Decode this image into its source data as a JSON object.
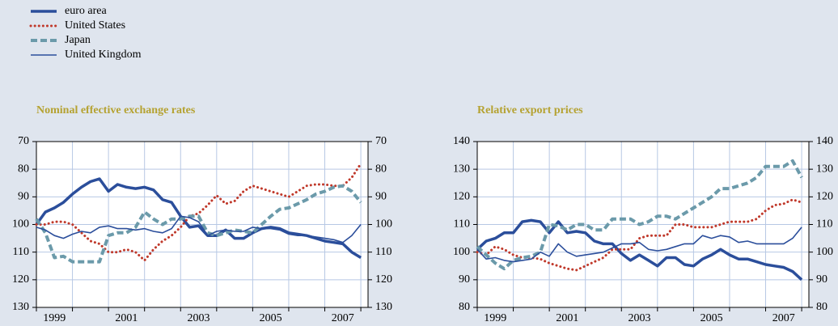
{
  "chart_data": [
    {
      "type": "line",
      "title": "Nominal effective exchange rates",
      "x": [
        1999,
        1999.25,
        1999.5,
        1999.75,
        2000,
        2000.25,
        2000.5,
        2000.75,
        2001,
        2001.25,
        2001.5,
        2001.75,
        2002,
        2002.25,
        2002.5,
        2002.75,
        2003,
        2003.25,
        2003.5,
        2003.75,
        2004,
        2004.25,
        2004.5,
        2004.75,
        2005,
        2005.25,
        2005.5,
        2005.75,
        2006,
        2006.25,
        2006.5,
        2006.75,
        2007,
        2007.25,
        2007.5,
        2007.75,
        2008
      ],
      "xlim": [
        1999,
        2008.2
      ],
      "xticks": [
        {
          "value": 1999.5,
          "label": "1999"
        },
        {
          "value": 2001.5,
          "label": "2001"
        },
        {
          "value": 2003.5,
          "label": "2003"
        },
        {
          "value": 2005.5,
          "label": "2005"
        },
        {
          "value": 2007.5,
          "label": "2007"
        }
      ],
      "xminor": [
        1999,
        2000,
        2001,
        2002,
        2003,
        2004,
        2005,
        2006,
        2007,
        2008
      ],
      "ylim": [
        70,
        130
      ],
      "y_inverted": true,
      "yticks": [
        70,
        80,
        90,
        100,
        110,
        120,
        130
      ],
      "y2lim": [
        70,
        130
      ],
      "y2ticks": [
        70,
        80,
        90,
        100,
        110,
        120,
        130
      ],
      "grid": true,
      "series": [
        {
          "name": "euro area",
          "color": "#2b4e9b",
          "style": "thick",
          "values": [
            100,
            95.5,
            94,
            92,
            89,
            86.5,
            84.5,
            83.5,
            88,
            85.5,
            86.5,
            87,
            86.5,
            87.5,
            91,
            92,
            97,
            101,
            100.5,
            104,
            104,
            102,
            105,
            105,
            103,
            101.5,
            101,
            101.5,
            103,
            103.5,
            104,
            105,
            106,
            106.5,
            107,
            110,
            112
          ]
        },
        {
          "name": "United States",
          "color": "#c0392b",
          "style": "dotted",
          "values": [
            100,
            100,
            99,
            99,
            100,
            103,
            106,
            107,
            110,
            110,
            109,
            110,
            113,
            109,
            106,
            104,
            101,
            97,
            96,
            93,
            89.5,
            92.5,
            91.5,
            88,
            86,
            87,
            88,
            89,
            90,
            88,
            86,
            85.5,
            85.5,
            86,
            86,
            83,
            78
          ]
        },
        {
          "name": "Japan",
          "color": "#6b9aaa",
          "style": "dashed",
          "values": [
            98,
            103,
            112,
            111.5,
            113.5,
            113.5,
            113.5,
            113.5,
            104,
            103,
            103,
            101,
            95.5,
            98,
            100,
            98,
            98,
            97,
            97,
            103,
            104,
            103,
            102,
            102.5,
            103,
            100,
            97,
            94.5,
            94,
            92.5,
            91,
            89,
            88,
            86.5,
            86,
            88,
            92
          ]
        },
        {
          "name": "United Kingdom",
          "color": "#2b4e9b",
          "style": "thin",
          "values": [
            101,
            102,
            104,
            105,
            103.5,
            102.5,
            103,
            101,
            100.5,
            101.5,
            101.5,
            102,
            101.5,
            102.5,
            103,
            101.5,
            97,
            97.5,
            99,
            104,
            102.5,
            102,
            102.5,
            102.5,
            101,
            101.5,
            101.5,
            102,
            103.5,
            104,
            104,
            104.5,
            105,
            105.5,
            106.5,
            104,
            100
          ]
        }
      ]
    },
    {
      "type": "line",
      "title": "Relative export prices",
      "x": [
        1999,
        1999.25,
        1999.5,
        1999.75,
        2000,
        2000.25,
        2000.5,
        2000.75,
        2001,
        2001.25,
        2001.5,
        2001.75,
        2002,
        2002.25,
        2002.5,
        2002.75,
        2003,
        2003.25,
        2003.5,
        2003.75,
        2004,
        2004.25,
        2004.5,
        2004.75,
        2005,
        2005.25,
        2005.5,
        2005.75,
        2006,
        2006.25,
        2006.5,
        2006.75,
        2007,
        2007.25,
        2007.5,
        2007.75,
        2008
      ],
      "xlim": [
        1999,
        2008.2
      ],
      "xticks": [
        {
          "value": 1999.5,
          "label": "1999"
        },
        {
          "value": 2001.5,
          "label": "2001"
        },
        {
          "value": 2003.5,
          "label": "2003"
        },
        {
          "value": 2005.5,
          "label": "2005"
        },
        {
          "value": 2007.5,
          "label": "2007"
        }
      ],
      "xminor": [
        1999,
        2000,
        2001,
        2002,
        2003,
        2004,
        2005,
        2006,
        2007,
        2008
      ],
      "ylim": [
        80,
        140
      ],
      "y_inverted": false,
      "yticks": [
        80,
        90,
        100,
        110,
        120,
        130,
        140
      ],
      "y2lim": [
        80,
        140
      ],
      "y2ticks": [
        80,
        90,
        100,
        110,
        120,
        130,
        140
      ],
      "grid": true,
      "series": [
        {
          "name": "euro area",
          "color": "#2b4e9b",
          "style": "thick",
          "values": [
            101,
            104,
            105,
            107,
            107,
            111,
            111.5,
            111,
            107,
            111,
            107,
            107.5,
            107,
            104,
            103,
            103,
            99.5,
            97,
            99,
            97,
            95,
            98,
            98,
            95.5,
            95,
            97.5,
            99,
            101,
            99,
            97.5,
            97.5,
            96.5,
            95.5,
            95,
            94.5,
            93,
            90
          ]
        },
        {
          "name": "United States",
          "color": "#c0392b",
          "style": "dotted",
          "values": [
            100,
            99,
            102,
            101,
            99,
            98,
            98,
            97.5,
            96,
            95,
            94,
            93.5,
            95,
            96.5,
            98,
            101,
            101,
            101,
            105,
            106,
            106,
            106,
            110,
            110,
            109,
            109,
            109,
            110,
            111,
            111,
            111,
            112,
            115,
            117,
            117.5,
            119,
            118
          ]
        },
        {
          "name": "Japan",
          "color": "#6b9aaa",
          "style": "dashed",
          "values": [
            102,
            99,
            96,
            94,
            97,
            98,
            98.5,
            100,
            110,
            109.5,
            108,
            110,
            110,
            108,
            108,
            112,
            112,
            112,
            110,
            111,
            113,
            113,
            112,
            114,
            116,
            118,
            120,
            123,
            123,
            124,
            125,
            127,
            131,
            131,
            131,
            133,
            127
          ]
        },
        {
          "name": "United Kingdom",
          "color": "#2b4e9b",
          "style": "thin",
          "values": [
            101,
            97.5,
            98,
            97,
            96.5,
            97,
            97.5,
            100,
            98.5,
            103,
            100,
            98.5,
            99,
            99.5,
            100,
            101.5,
            103,
            103,
            103.5,
            101,
            100.5,
            101,
            102,
            103,
            103,
            106,
            105,
            106,
            105.5,
            103.5,
            104,
            103,
            103,
            103,
            103,
            105,
            109
          ]
        }
      ]
    }
  ]
}
